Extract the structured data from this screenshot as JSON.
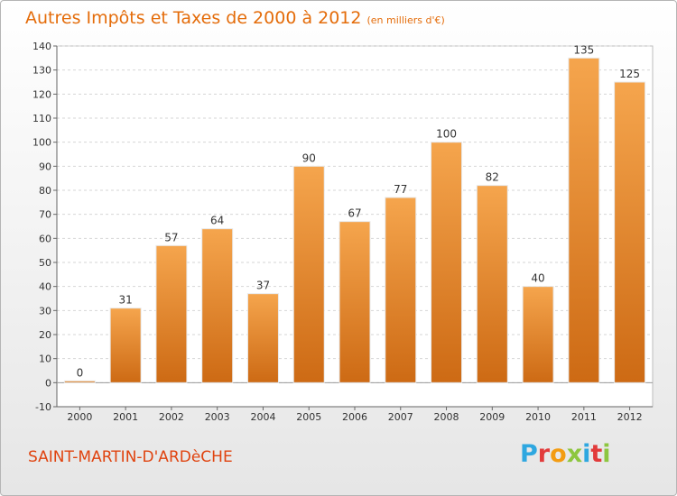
{
  "header": {
    "title": "Autres Impôts et Taxes de 2000 à 2012",
    "unit": "(en milliers d'€)"
  },
  "footer": {
    "commune": "SAINT-MARTIN-D'ARDèCHE",
    "brand": "Proxiti"
  },
  "colors": {
    "bar": "#f09a3e",
    "bar_dark": "#cd6a14",
    "title": "#e46c0a",
    "commune": "#e0430f",
    "brand_letters": [
      "#2ea7e0",
      "#e23b3b",
      "#f39c12",
      "#8dc63f",
      "#2ea7e0",
      "#e23b3b",
      "#8dc63f"
    ]
  },
  "chart_data": {
    "type": "bar",
    "title": "Autres Impôts et Taxes de 2000 à 2012",
    "subtitle": "(en milliers d'€)",
    "categories": [
      "2000",
      "2001",
      "2002",
      "2003",
      "2004",
      "2005",
      "2006",
      "2007",
      "2008",
      "2009",
      "2010",
      "2011",
      "2012"
    ],
    "values": [
      0,
      31,
      57,
      64,
      37,
      90,
      67,
      77,
      100,
      82,
      40,
      135,
      125
    ],
    "ylim": [
      -10,
      140
    ],
    "yticks": [
      -10,
      0,
      10,
      20,
      30,
      40,
      50,
      60,
      70,
      80,
      90,
      100,
      110,
      120,
      130,
      140
    ],
    "grid": true,
    "data_labels": true
  }
}
